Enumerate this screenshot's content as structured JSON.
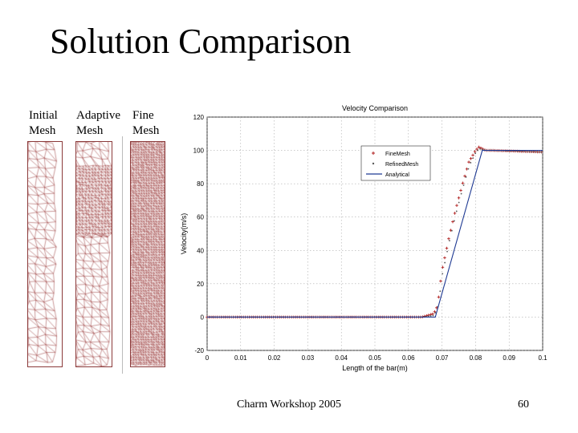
{
  "slide": {
    "title": "Solution Comparison",
    "footer": "Charm Workshop 2005",
    "page_number": "60"
  },
  "meshes": [
    {
      "label": "Initial\nMesh",
      "density": "coarse"
    },
    {
      "label": "Adaptive\nMesh",
      "density": "adaptive"
    },
    {
      "label": "Fine\nMesh",
      "density": "fine"
    }
  ],
  "colors": {
    "mesh_line": "#8b1a1a",
    "fine_mesh": "#b22222",
    "refined_mesh": "#5a5a5a",
    "analytical": "#1f3a93"
  },
  "chart_data": {
    "type": "line",
    "title": "Velocity Comparison",
    "xlabel": "Length of the bar(m)",
    "ylabel": "Velocity(m/s)",
    "xlim": [
      0,
      0.1
    ],
    "ylim": [
      -20,
      120
    ],
    "xticks": [
      "0",
      "0.01",
      "0.02",
      "0.03",
      "0.04",
      "0.05",
      "0.06",
      "0.07",
      "0.08",
      "0.09",
      "0.1"
    ],
    "yticks": [
      "-20",
      "0",
      "20",
      "40",
      "60",
      "80",
      "100",
      "120"
    ],
    "grid": true,
    "legend_position": "upper-right",
    "series": [
      {
        "name": "FineMesh",
        "style": "markers-plus",
        "x": [
          0,
          0.064,
          0.0675,
          0.0685,
          0.069,
          0.07,
          0.072,
          0.074,
          0.076,
          0.078,
          0.08,
          0.081,
          0.083,
          0.085,
          0.1
        ],
        "y": [
          0,
          0,
          2,
          6,
          12,
          28,
          47,
          64,
          79,
          93,
          100,
          102,
          100,
          100,
          99
        ]
      },
      {
        "name": "RefinedMesh",
        "style": "markers-dot",
        "x": [
          0,
          0.064,
          0.0675,
          0.0685,
          0.069,
          0.07,
          0.072,
          0.074,
          0.076,
          0.078,
          0.08,
          0.081,
          0.083,
          0.085,
          0.1
        ],
        "y": [
          0,
          0,
          1,
          5,
          11,
          26,
          45,
          62,
          77,
          91,
          99,
          101,
          100,
          100,
          99
        ]
      },
      {
        "name": "Analytical",
        "style": "line",
        "x": [
          0,
          0.068,
          0.082,
          0.1
        ],
        "y": [
          0,
          0,
          100,
          100
        ]
      }
    ]
  }
}
